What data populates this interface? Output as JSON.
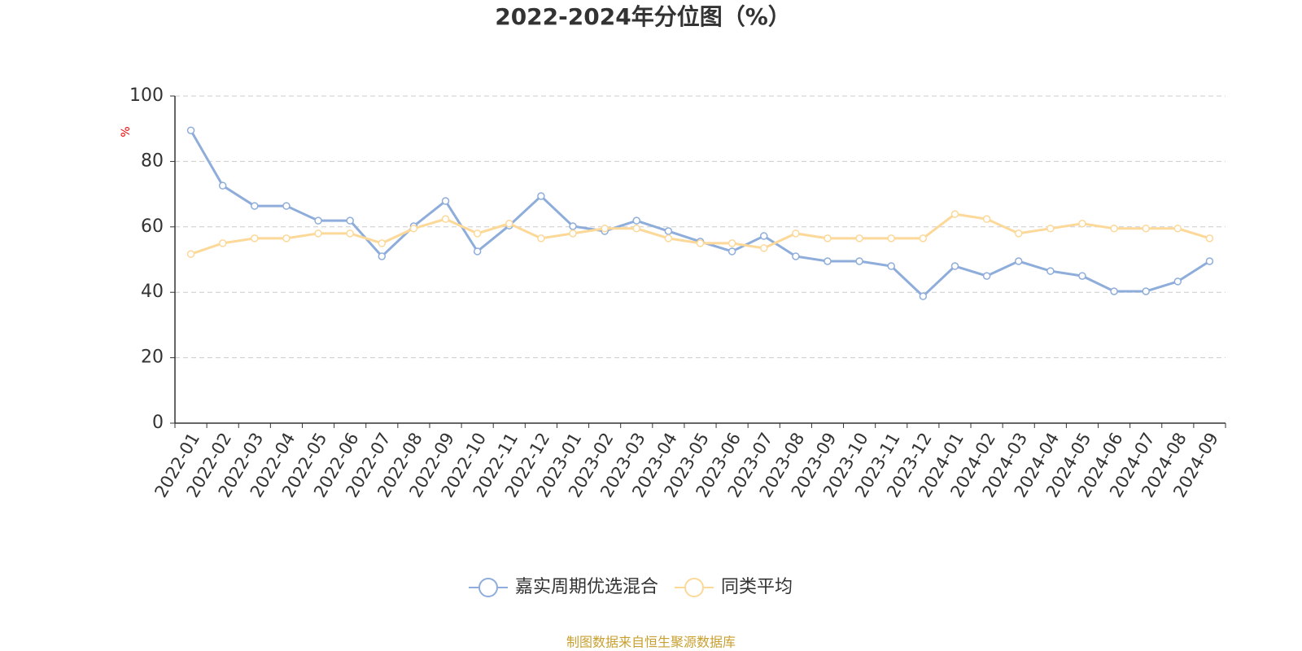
{
  "chart_data": {
    "type": "line",
    "title": "2022-2024年分位图（%）",
    "y_label": "%",
    "source": "制图数据来自恒生聚源数据库",
    "categories": [
      "2022-01",
      "2022-02",
      "2022-03",
      "2022-04",
      "2022-05",
      "2022-06",
      "2022-07",
      "2022-08",
      "2022-09",
      "2022-10",
      "2022-11",
      "2022-12",
      "2023-01",
      "2023-02",
      "2023-03",
      "2023-04",
      "2023-05",
      "2023-06",
      "2023-07",
      "2023-08",
      "2023-09",
      "2023-10",
      "2023-11",
      "2023-12",
      "2024-01",
      "2024-02",
      "2024-03",
      "2024-04",
      "2024-05",
      "2024-06",
      "2024-07",
      "2024-08",
      "2024-09"
    ],
    "series": [
      {
        "name": "嘉实周期优选混合",
        "color": "#8eadda",
        "values": [
          89.5,
          72.6,
          66.4,
          66.4,
          61.9,
          61.9,
          51.0,
          60.2,
          67.9,
          52.5,
          60.4,
          69.4,
          60.2,
          58.7,
          61.9,
          58.7,
          55.5,
          52.5,
          57.2,
          51.0,
          49.5,
          49.5,
          48.0,
          38.8,
          48.0,
          45.0,
          49.5,
          46.5,
          45.0,
          40.3,
          40.3,
          43.3,
          49.5
        ]
      },
      {
        "name": "同类平均",
        "color": "#fcd899",
        "values": [
          51.7,
          55.0,
          56.5,
          56.5,
          58.0,
          58.0,
          55.0,
          59.5,
          62.4,
          58.0,
          61.0,
          56.5,
          58.0,
          59.5,
          59.5,
          56.5,
          55.0,
          55.0,
          53.5,
          58.0,
          56.5,
          56.5,
          56.5,
          56.5,
          63.9,
          62.4,
          58.0,
          59.5,
          61.0,
          59.5,
          59.5,
          59.5,
          56.5
        ]
      }
    ],
    "ylim": [
      0,
      100
    ],
    "yticks": [
      0,
      20,
      40,
      60,
      80,
      100
    ],
    "grid": true
  }
}
